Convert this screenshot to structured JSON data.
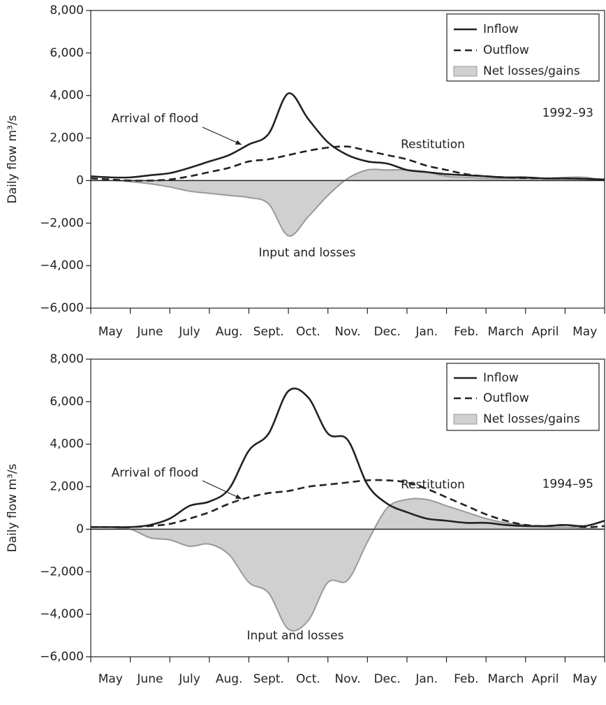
{
  "chart_data": [
    {
      "type": "line-area",
      "ylabel": "Daily flow m³/s",
      "categories": [
        "May",
        "June",
        "July",
        "Aug.",
        "Sept.",
        "Oct.",
        "Nov.",
        "Dec.",
        "Jan.",
        "Feb.",
        "March",
        "April",
        "May"
      ],
      "x": [
        0,
        0.5,
        1,
        1.5,
        2,
        2.5,
        3,
        3.5,
        4,
        4.5,
        5,
        5.5,
        6,
        6.5,
        7,
        7.5,
        8,
        8.5,
        9,
        9.5,
        10,
        10.5,
        11,
        11.5,
        12,
        12.5,
        13
      ],
      "xlim": [
        0,
        13
      ],
      "ylim": [
        -6000,
        8000
      ],
      "yticks": [
        {
          "value": -6000,
          "label": "−6,000"
        },
        {
          "value": -4000,
          "label": "−4,000"
        },
        {
          "value": -2000,
          "label": "−2,000"
        },
        0,
        {
          "value": 2000,
          "label": "2,000"
        },
        {
          "value": 4000,
          "label": "4,000"
        },
        {
          "value": 6000,
          "label": "6,000"
        },
        {
          "value": 8000,
          "label": "8,000"
        }
      ],
      "legend": "upper right",
      "series": [
        {
          "name": "Inflow",
          "color": "#222222",
          "dash": false,
          "values": [
            200,
            150,
            150,
            250,
            350,
            600,
            900,
            1200,
            1700,
            2200,
            4100,
            2900,
            1800,
            1200,
            900,
            800,
            500,
            400,
            300,
            250,
            200,
            150,
            150,
            100,
            100,
            80,
            50
          ]
        },
        {
          "name": "Outflow",
          "color": "#222222",
          "dash": true,
          "values": [
            100,
            50,
            0,
            0,
            50,
            200,
            400,
            600,
            900,
            1000,
            1200,
            1400,
            1550,
            1600,
            1400,
            1200,
            1000,
            700,
            500,
            300,
            200,
            150,
            120,
            100,
            100,
            80,
            50
          ]
        },
        {
          "name": "Net losses/gains",
          "color": "#d0d0d0",
          "area": true,
          "values": [
            0,
            0,
            -50,
            -150,
            -300,
            -500,
            -600,
            -700,
            -800,
            -1100,
            -2600,
            -1700,
            -700,
            100,
            500,
            500,
            500,
            400,
            200,
            150,
            100,
            100,
            100,
            100,
            150,
            150,
            0
          ]
        }
      ],
      "annotations": [
        "Arrival of flood",
        "Restitution",
        "Input and losses",
        "1992–93"
      ]
    },
    {
      "type": "line-area",
      "ylabel": "Daily flow m³/s",
      "categories": [
        "May",
        "June",
        "July",
        "Aug.",
        "Sept.",
        "Oct.",
        "Nov.",
        "Dec.",
        "Jan.",
        "Feb.",
        "March",
        "April",
        "May"
      ],
      "x": [
        0,
        0.5,
        1,
        1.5,
        2,
        2.5,
        3,
        3.5,
        4,
        4.5,
        5,
        5.5,
        6,
        6.5,
        7,
        7.5,
        8,
        8.5,
        9,
        9.5,
        10,
        10.5,
        11,
        11.5,
        12,
        12.5,
        13
      ],
      "xlim": [
        0,
        13
      ],
      "ylim": [
        -6000,
        8000
      ],
      "yticks": [
        {
          "value": -6000,
          "label": "−6,000"
        },
        {
          "value": -4000,
          "label": "−4,000"
        },
        {
          "value": -2000,
          "label": "−2,000"
        },
        0,
        {
          "value": 2000,
          "label": "2,000"
        },
        {
          "value": 4000,
          "label": "4,000"
        },
        {
          "value": 6000,
          "label": "6,000"
        },
        {
          "value": 8000,
          "label": "8,000"
        }
      ],
      "legend": "upper right",
      "series": [
        {
          "name": "Inflow",
          "color": "#222222",
          "dash": false,
          "values": [
            100,
            100,
            100,
            200,
            500,
            1100,
            1300,
            1900,
            3700,
            4500,
            6500,
            6200,
            4500,
            4200,
            2100,
            1200,
            800,
            500,
            400,
            300,
            300,
            200,
            150,
            150,
            200,
            150,
            400
          ]
        },
        {
          "name": "Outflow",
          "color": "#222222",
          "dash": true,
          "values": [
            100,
            100,
            100,
            150,
            250,
            500,
            800,
            1200,
            1500,
            1700,
            1800,
            2000,
            2100,
            2200,
            2300,
            2300,
            2200,
            1900,
            1500,
            1100,
            700,
            400,
            200,
            150,
            200,
            100,
            150
          ]
        },
        {
          "name": "Net losses/gains",
          "color": "#d0d0d0",
          "area": true,
          "values": [
            0,
            0,
            0,
            -400,
            -500,
            -800,
            -700,
            -1200,
            -2500,
            -3000,
            -4700,
            -4300,
            -2500,
            -2400,
            -600,
            1000,
            1400,
            1400,
            1100,
            800,
            500,
            300,
            200,
            100,
            100,
            50,
            0
          ]
        }
      ],
      "annotations": [
        "Arrival of flood",
        "Restitution",
        "Input and losses",
        "1994–95"
      ]
    }
  ]
}
